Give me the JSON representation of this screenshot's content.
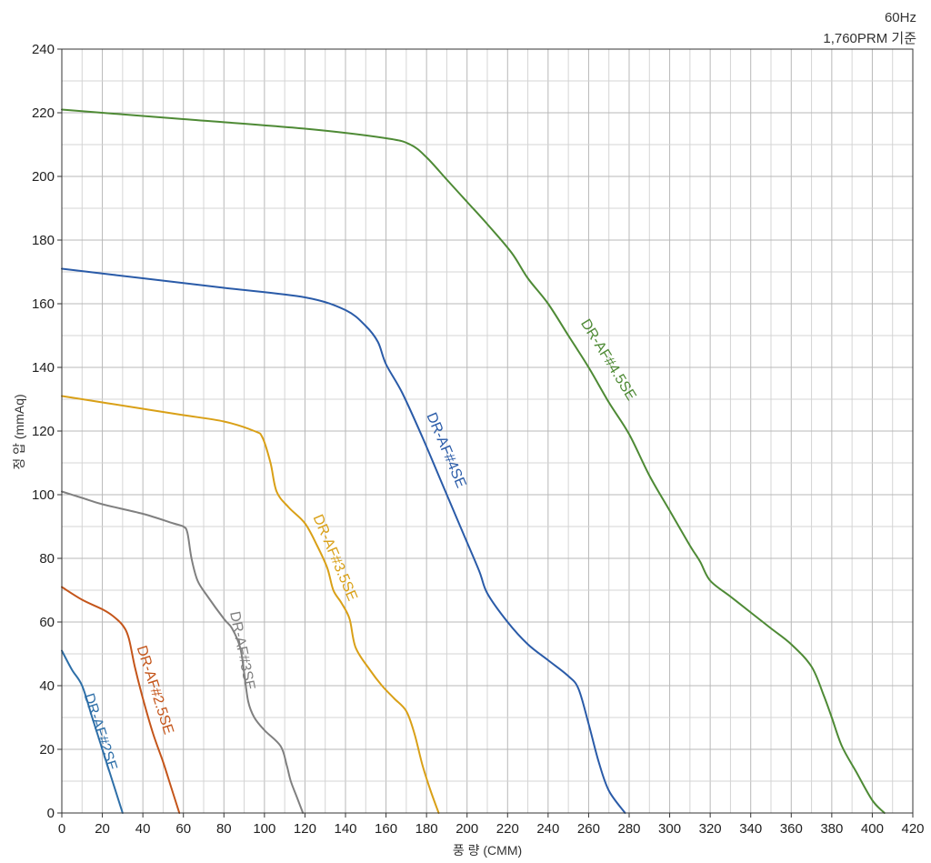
{
  "note": {
    "line1": "60Hz",
    "line2": "1,760PRM 기준"
  },
  "chart_data": {
    "type": "line",
    "xlabel": "풍 량 (CMM)",
    "ylabel": "정 압 (mmAq)",
    "xlim": [
      0,
      420
    ],
    "ylim": [
      0,
      240
    ],
    "x_ticks": [
      0,
      20,
      40,
      60,
      80,
      100,
      120,
      140,
      160,
      180,
      200,
      220,
      240,
      260,
      280,
      300,
      320,
      340,
      360,
      380,
      400,
      420
    ],
    "y_ticks": [
      0,
      20,
      40,
      60,
      80,
      100,
      120,
      140,
      160,
      180,
      200,
      220,
      240
    ],
    "grid": true,
    "minor_grid_x": 10,
    "minor_grid_y": 10,
    "legend": "inline labels along curves",
    "series": [
      {
        "name": "DR-AF#2SE",
        "color": "#2e6fa8",
        "points": [
          [
            0,
            51
          ],
          [
            5,
            45
          ],
          [
            10,
            40
          ],
          [
            15,
            30
          ],
          [
            20,
            20
          ],
          [
            25,
            10
          ],
          [
            30,
            0
          ]
        ]
      },
      {
        "name": "DR-AF#2.5SE",
        "color": "#c4551a",
        "points": [
          [
            0,
            71
          ],
          [
            10,
            67
          ],
          [
            20,
            64
          ],
          [
            25,
            62
          ],
          [
            30,
            59
          ],
          [
            33,
            55
          ],
          [
            36,
            46
          ],
          [
            40,
            36
          ],
          [
            45,
            25
          ],
          [
            50,
            16
          ],
          [
            54,
            8
          ],
          [
            58,
            0
          ]
        ]
      },
      {
        "name": "DR-AF#3SE",
        "color": "#808080",
        "points": [
          [
            0,
            101
          ],
          [
            10,
            99
          ],
          [
            20,
            97
          ],
          [
            40,
            94
          ],
          [
            55,
            91
          ],
          [
            60,
            90
          ],
          [
            62,
            88
          ],
          [
            64,
            80
          ],
          [
            67,
            73
          ],
          [
            72,
            68
          ],
          [
            80,
            61
          ],
          [
            84,
            58
          ],
          [
            88,
            52
          ],
          [
            90,
            44
          ],
          [
            92,
            35
          ],
          [
            95,
            30
          ],
          [
            100,
            26
          ],
          [
            108,
            21
          ],
          [
            111,
            15
          ],
          [
            113,
            10
          ],
          [
            116,
            5
          ],
          [
            119,
            0
          ]
        ]
      },
      {
        "name": "DR-AF#3.5SE",
        "color": "#d9a017",
        "points": [
          [
            0,
            131
          ],
          [
            20,
            129
          ],
          [
            40,
            127
          ],
          [
            60,
            125
          ],
          [
            80,
            123
          ],
          [
            95,
            120
          ],
          [
            99,
            118
          ],
          [
            103,
            110
          ],
          [
            106,
            101
          ],
          [
            112,
            96
          ],
          [
            120,
            91
          ],
          [
            126,
            84
          ],
          [
            131,
            77
          ],
          [
            134,
            70
          ],
          [
            138,
            66
          ],
          [
            142,
            61
          ],
          [
            145,
            52
          ],
          [
            152,
            45
          ],
          [
            158,
            40
          ],
          [
            164,
            36
          ],
          [
            170,
            32
          ],
          [
            174,
            25
          ],
          [
            178,
            15
          ],
          [
            182,
            7
          ],
          [
            186,
            0
          ]
        ]
      },
      {
        "name": "DR-AF#4SE",
        "color": "#2a5ba8",
        "points": [
          [
            0,
            171
          ],
          [
            40,
            168
          ],
          [
            80,
            165
          ],
          [
            120,
            162
          ],
          [
            140,
            158
          ],
          [
            150,
            153
          ],
          [
            156,
            148
          ],
          [
            160,
            141
          ],
          [
            168,
            132
          ],
          [
            178,
            118
          ],
          [
            188,
            103
          ],
          [
            198,
            88
          ],
          [
            206,
            76
          ],
          [
            210,
            69
          ],
          [
            220,
            60
          ],
          [
            230,
            53
          ],
          [
            240,
            48
          ],
          [
            250,
            43
          ],
          [
            255,
            39
          ],
          [
            260,
            28
          ],
          [
            265,
            16
          ],
          [
            270,
            7
          ],
          [
            278,
            0
          ]
        ]
      },
      {
        "name": "DR-AF#4.5SE",
        "color": "#4e8a35",
        "points": [
          [
            0,
            221
          ],
          [
            60,
            218
          ],
          [
            120,
            215
          ],
          [
            160,
            212
          ],
          [
            172,
            210
          ],
          [
            180,
            206
          ],
          [
            190,
            199
          ],
          [
            200,
            192
          ],
          [
            210,
            185
          ],
          [
            222,
            176
          ],
          [
            230,
            168
          ],
          [
            240,
            160
          ],
          [
            250,
            150
          ],
          [
            260,
            140
          ],
          [
            270,
            129
          ],
          [
            280,
            119
          ],
          [
            290,
            106
          ],
          [
            300,
            95
          ],
          [
            310,
            84
          ],
          [
            315,
            79
          ],
          [
            320,
            73
          ],
          [
            330,
            68
          ],
          [
            340,
            63
          ],
          [
            350,
            58
          ],
          [
            360,
            53
          ],
          [
            370,
            46
          ],
          [
            376,
            37
          ],
          [
            380,
            30
          ],
          [
            385,
            21
          ],
          [
            392,
            13
          ],
          [
            400,
            4
          ],
          [
            406,
            0
          ]
        ]
      }
    ]
  }
}
